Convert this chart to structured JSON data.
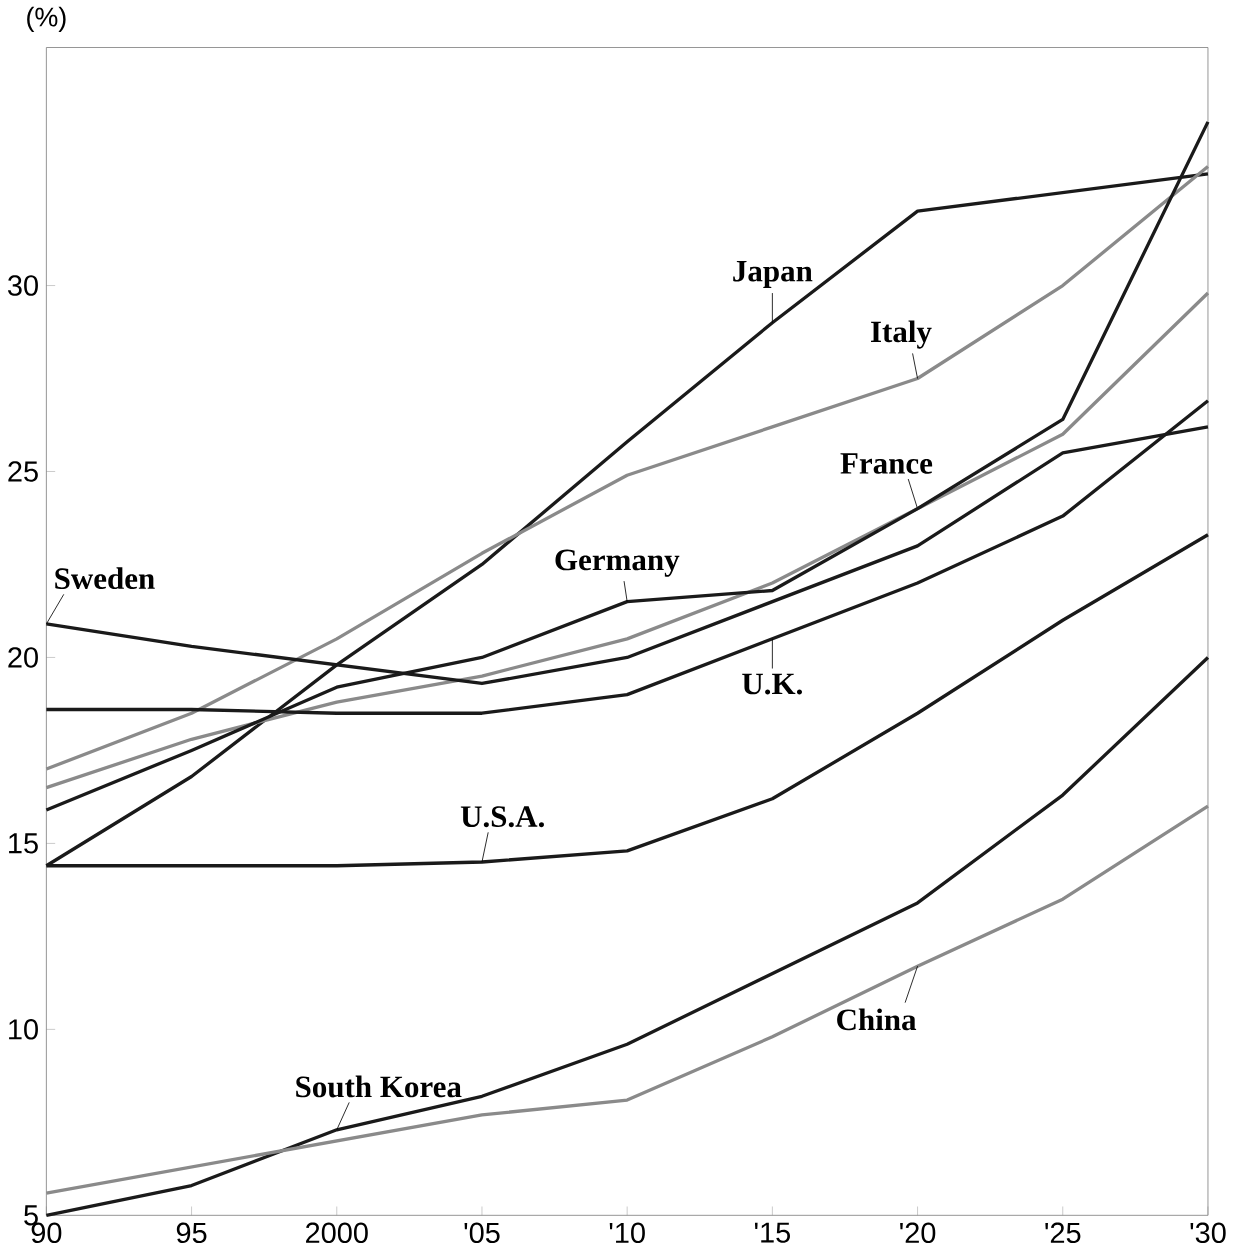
{
  "chart_data": {
    "type": "line",
    "ylabel": "(%)",
    "x": [
      1990,
      1995,
      2000,
      2005,
      2010,
      2015,
      2020,
      2025,
      2030
    ],
    "xlim": [
      1990,
      2030
    ],
    "xticks": [
      {
        "value": 1990,
        "label": "90"
      },
      {
        "value": 1995,
        "label": "95"
      },
      {
        "value": 2000,
        "label": "2000"
      },
      {
        "value": 2005,
        "label": "'05"
      },
      {
        "value": 2010,
        "label": "'10"
      },
      {
        "value": 2015,
        "label": "'15"
      },
      {
        "value": 2020,
        "label": "'20"
      },
      {
        "value": 2025,
        "label": "'25"
      },
      {
        "value": 2030,
        "label": "'30"
      }
    ],
    "ylim": [
      5,
      36.4
    ],
    "yticks": [
      5,
      10,
      15,
      20,
      25,
      30
    ],
    "line_style": "solid",
    "series": [
      {
        "name": "Japan",
        "color": "#1a1a1a",
        "values": [
          14.4,
          16.8,
          19.8,
          22.5,
          25.8,
          29.0,
          32.0,
          32.5,
          33.0
        ]
      },
      {
        "name": "Italy",
        "color": "#8a8a8a",
        "values": [
          17.0,
          18.5,
          20.5,
          22.8,
          24.9,
          26.2,
          27.5,
          30.0,
          33.2
        ]
      },
      {
        "name": "France",
        "color": "#8a8a8a",
        "values": [
          16.5,
          17.8,
          18.8,
          19.5,
          20.5,
          22.0,
          24.0,
          26.0,
          29.8
        ]
      },
      {
        "name": "Germany",
        "color": "#1a1a1a",
        "values": [
          15.9,
          17.5,
          19.2,
          20.0,
          21.5,
          21.8,
          24.0,
          26.4,
          34.4
        ]
      },
      {
        "name": "Sweden",
        "color": "#1a1a1a",
        "values": [
          20.9,
          20.3,
          19.8,
          19.3,
          20.0,
          21.5,
          23.0,
          25.5,
          26.2
        ]
      },
      {
        "name": "U.K.",
        "color": "#1a1a1a",
        "values": [
          18.6,
          18.6,
          18.5,
          18.5,
          19.0,
          20.5,
          22.0,
          23.8,
          26.9
        ]
      },
      {
        "name": "U.S.A.",
        "color": "#1a1a1a",
        "values": [
          14.4,
          14.4,
          14.4,
          14.5,
          14.8,
          16.2,
          18.5,
          21.0,
          23.3
        ]
      },
      {
        "name": "South Korea",
        "color": "#1a1a1a",
        "values": [
          5.0,
          5.8,
          7.3,
          8.2,
          9.6,
          11.5,
          13.4,
          16.3,
          20.0
        ]
      },
      {
        "name": "China",
        "color": "#8a8a8a",
        "values": [
          5.6,
          6.3,
          7.0,
          7.7,
          8.1,
          9.8,
          11.7,
          13.5,
          16.0
        ]
      }
    ]
  }
}
